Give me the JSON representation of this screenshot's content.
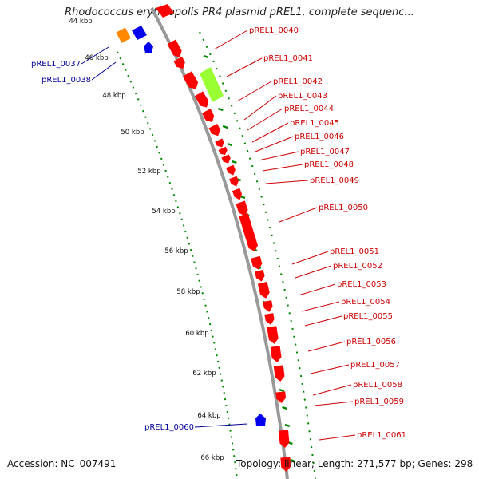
{
  "title": "Rhodococcus erythropolis PR4 plasmid pREL1, complete sequenc...",
  "footer": {
    "accession": "Accession: NC_007491",
    "summary": "Topology: linear; Length: 271,577 bp; Genes: 298"
  },
  "colors": {
    "forward_gene": "#ff0000",
    "highlight_gene": "#99ff33",
    "reverse_gene": "#0000ee",
    "misc_gene": "#ff8800",
    "backbone": "#999999",
    "dots": "#008800",
    "label_forward": "#cc0000",
    "label_reverse": "#000099"
  },
  "ruler_labels": [
    "44 kbp",
    "46 kbp",
    "48 kbp",
    "50 kbp",
    "52 kbp",
    "54 kbp",
    "56 kbp",
    "58 kbp",
    "60 kbp",
    "62 kbp",
    "64 kbp",
    "66 kbp"
  ],
  "forward_labels": [
    "pREL1_0040",
    "pREL1_0041",
    "pREL1_0042",
    "pREL1_0043",
    "pREL1_0044",
    "pREL1_0045",
    "pREL1_0046",
    "pREL1_0047",
    "pREL1_0048",
    "pREL1_0049",
    "pREL1_0050",
    "pREL1_0051",
    "pREL1_0052",
    "pREL1_0053",
    "pREL1_0054",
    "pREL1_0055",
    "pREL1_0056",
    "pREL1_0057",
    "pREL1_0058",
    "pREL1_0059",
    "pREL1_0061"
  ],
  "reverse_labels": [
    "pREL1_0037",
    "pREL1_0038",
    "pREL1_0060"
  ]
}
